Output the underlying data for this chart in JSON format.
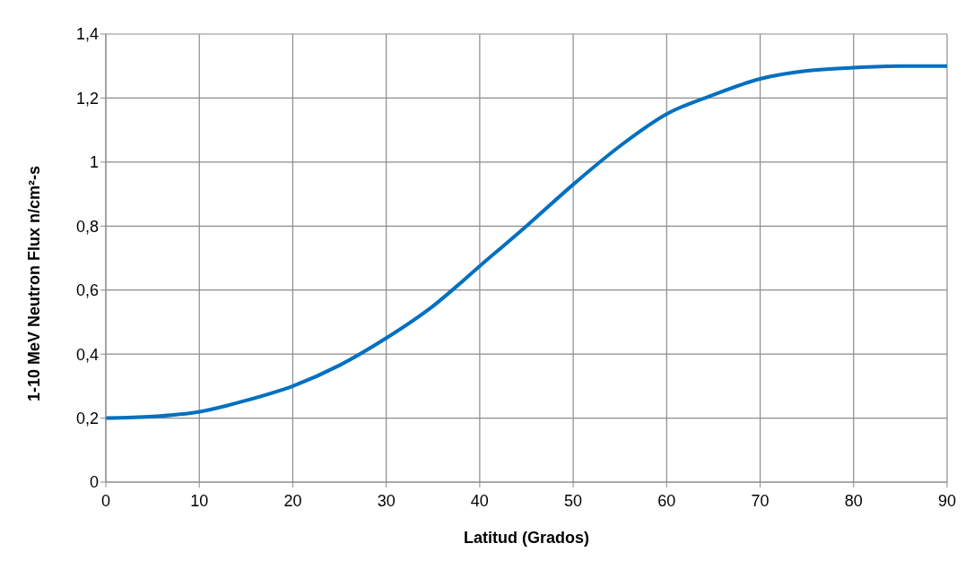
{
  "chart_data": {
    "type": "line",
    "xlabel": "Latitud (Grados)",
    "ylabel": "1-10 MeV Neutron Flux n/cm²-s",
    "x": [
      0,
      5,
      10,
      15,
      20,
      25,
      30,
      35,
      40,
      45,
      50,
      55,
      60,
      65,
      70,
      75,
      80,
      85,
      90
    ],
    "series": [
      {
        "color": "#0070c0",
        "values": [
          0.2,
          0.205,
          0.22,
          0.255,
          0.3,
          0.365,
          0.45,
          0.55,
          0.675,
          0.8,
          0.93,
          1.05,
          1.15,
          1.21,
          1.26,
          1.285,
          1.295,
          1.3,
          1.3
        ]
      }
    ],
    "xlim": [
      0,
      90
    ],
    "xticks": [
      0,
      10,
      20,
      30,
      40,
      50,
      60,
      70,
      80,
      90
    ],
    "ylim": [
      0,
      1.4
    ],
    "yticks": [
      0,
      {
        "value": 0.2,
        "label": "0,2"
      },
      {
        "value": 0.4,
        "label": "0,4"
      },
      {
        "value": 0.6,
        "label": "0,6"
      },
      {
        "value": 0.8,
        "label": "0,8"
      },
      1,
      {
        "value": 1.2,
        "label": "1,2"
      },
      {
        "value": 1.4,
        "label": "1,4"
      }
    ],
    "grid": true,
    "legend": false,
    "marker": "none",
    "line_style": "solid"
  }
}
